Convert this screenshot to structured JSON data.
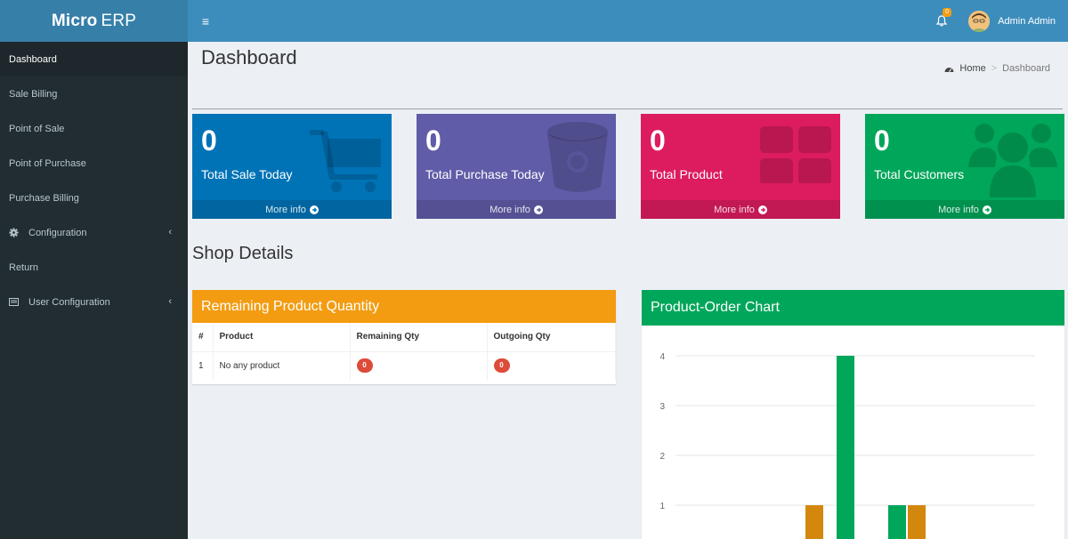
{
  "brand": {
    "bold": "Micro",
    "light": "ERP"
  },
  "header": {
    "toggle": "≡",
    "notification_count": "0",
    "user_name": "Admin Admin"
  },
  "sidebar": {
    "items": [
      {
        "label": "Dashboard"
      },
      {
        "label": "Sale Billing"
      },
      {
        "label": "Point of Sale"
      },
      {
        "label": "Point of Purchase"
      },
      {
        "label": "Purchase Billing"
      },
      {
        "label": "Configuration",
        "icon": "gear-icon"
      },
      {
        "label": "Return"
      },
      {
        "label": "User Configuration",
        "icon": "list-icon"
      }
    ]
  },
  "page": {
    "title": "Dashboard"
  },
  "breadcrumb": {
    "home": "Home",
    "separator": ">",
    "current": "Dashboard"
  },
  "stats": [
    {
      "value": "0",
      "label": "Total Sale Today",
      "more": "More info",
      "color": "#0073b7",
      "icon": "cart-icon"
    },
    {
      "value": "0",
      "label": "Total Purchase Today",
      "more": "More info",
      "color": "#605ca8",
      "icon": "bucket-icon"
    },
    {
      "value": "0",
      "label": "Total Product",
      "more": "More info",
      "color": "#dd1c5f",
      "icon": "grid-icon"
    },
    {
      "value": "0",
      "label": "Total Customers",
      "more": "More info",
      "color": "#00a65a",
      "icon": "users-icon"
    }
  ],
  "section": {
    "title": "Shop Details"
  },
  "remaining": {
    "title": "Remaining Product Quantity",
    "columns": [
      "#",
      "Product",
      "Remaining Qty",
      "Outgoing Qty"
    ],
    "rows": [
      {
        "index": "1",
        "product": "No any product",
        "remaining": "0",
        "outgoing": "0"
      }
    ]
  },
  "chart_panel": {
    "title": "Product-Order Chart"
  },
  "chart_data": {
    "type": "bar",
    "y_ticks": [
      "1",
      "2",
      "3",
      "4"
    ],
    "ylim": [
      0,
      4
    ],
    "grid": true,
    "bars": [
      {
        "value": 1,
        "color": "#d4870d"
      },
      {
        "value": 4,
        "color": "#00a65a"
      },
      {
        "value": 1,
        "color": "#00a65a"
      },
      {
        "value": 1,
        "color": "#d4870d"
      }
    ]
  }
}
